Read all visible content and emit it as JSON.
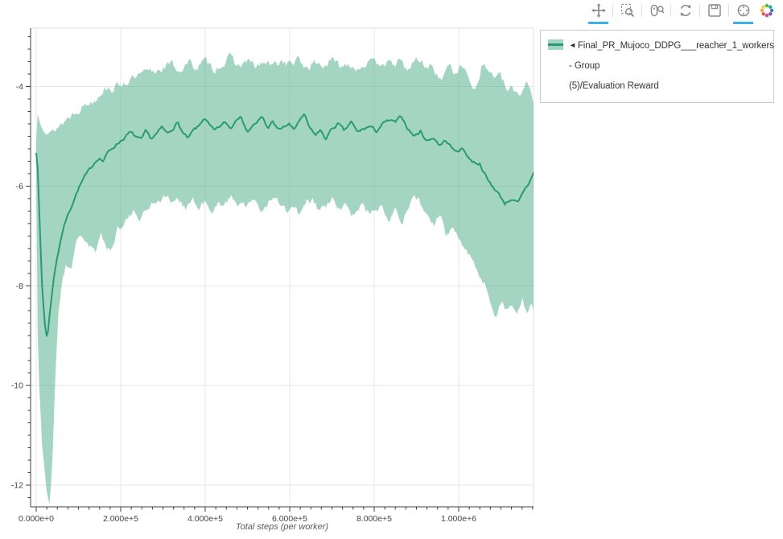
{
  "toolbar": {
    "icon_color": "#8c8c8c",
    "active_underline_color": "#3fb0e4",
    "tools": [
      {
        "id": "pan",
        "active": true
      },
      {
        "id": "box-zoom",
        "active": false
      },
      {
        "id": "wheel-zoom",
        "active": false
      },
      {
        "id": "reset",
        "active": false
      },
      {
        "id": "save",
        "active": false
      },
      {
        "id": "hover",
        "active": true
      }
    ],
    "logo": "bokeh"
  },
  "legend": {
    "marker": "◄",
    "label_lines": [
      "Final_PR_Mujoco_DDPG___reacher_1_workers - Group",
      "(5)/Evaluation Reward"
    ],
    "swatch_band_color": "#a4d5c3",
    "swatch_line_color": "#289b72"
  },
  "chart_data": {
    "type": "line",
    "title": "",
    "xlabel": "Total steps (per worker)",
    "ylabel": "",
    "xlim": [
      -13333,
      1177143
    ],
    "ylim": [
      -12.436,
      -2.829
    ],
    "grid": true,
    "legend_position": "right",
    "x_ticks": [
      {
        "value": 0,
        "label": "0.000e+0"
      },
      {
        "value": 200000,
        "label": "2.000e+5"
      },
      {
        "value": 400000,
        "label": "4.000e+5"
      },
      {
        "value": 600000,
        "label": "6.000e+5"
      },
      {
        "value": 800000,
        "label": "8.000e+5"
      },
      {
        "value": 1000000,
        "label": "1.000e+6"
      }
    ],
    "x_minor_step": 25000,
    "y_ticks": [
      {
        "value": -4,
        "label": "-4"
      },
      {
        "value": -6,
        "label": "-6"
      },
      {
        "value": -8,
        "label": "-8"
      },
      {
        "value": -10,
        "label": "-10"
      },
      {
        "value": -12,
        "label": "-12"
      }
    ],
    "y_minor_step": 0.25,
    "style": {
      "line_color": "#289b72",
      "band_fill": "#35a27a",
      "band_opacity": 0.45,
      "axis_color": "#3f3f3f",
      "grid_color": "#e7e7e7",
      "border_color": "#e2e2e2",
      "tick_label_color": "#444444"
    },
    "series": [
      {
        "name": "Final_PR_Mujoco_DDPG___reacher_1_workers - Group (5)/Evaluation Reward",
        "mean": [
          [
            0,
            -5.33
          ],
          [
            3000,
            -5.5
          ],
          [
            8000,
            -6.7
          ],
          [
            14000,
            -8.0
          ],
          [
            20000,
            -8.75
          ],
          [
            26000,
            -9.08
          ],
          [
            34000,
            -8.4
          ],
          [
            40000,
            -7.95
          ],
          [
            48000,
            -7.5
          ],
          [
            56000,
            -7.15
          ],
          [
            64000,
            -6.85
          ],
          [
            76000,
            -6.55
          ],
          [
            88000,
            -6.3
          ],
          [
            100000,
            -6.05
          ],
          [
            112000,
            -5.85
          ],
          [
            124000,
            -5.7
          ],
          [
            136000,
            -5.55
          ],
          [
            148000,
            -5.42
          ],
          [
            158000,
            -5.5
          ],
          [
            170000,
            -5.32
          ],
          [
            182000,
            -5.22
          ],
          [
            196000,
            -5.12
          ],
          [
            210000,
            -5.02
          ],
          [
            222000,
            -4.92
          ],
          [
            235000,
            -5.0
          ],
          [
            248000,
            -5.08
          ],
          [
            260000,
            -4.9
          ],
          [
            272000,
            -5.05
          ],
          [
            285000,
            -4.95
          ],
          [
            298000,
            -4.82
          ],
          [
            310000,
            -4.95
          ],
          [
            322000,
            -4.85
          ],
          [
            335000,
            -4.72
          ],
          [
            348000,
            -4.95
          ],
          [
            360000,
            -5.05
          ],
          [
            372000,
            -4.88
          ],
          [
            385000,
            -4.8
          ],
          [
            398000,
            -4.62
          ],
          [
            410000,
            -4.78
          ],
          [
            422000,
            -4.9
          ],
          [
            435000,
            -4.8
          ],
          [
            448000,
            -4.72
          ],
          [
            460000,
            -4.85
          ],
          [
            472000,
            -4.68
          ],
          [
            485000,
            -4.55
          ],
          [
            498000,
            -4.92
          ],
          [
            510000,
            -4.8
          ],
          [
            522000,
            -4.72
          ],
          [
            535000,
            -4.62
          ],
          [
            548000,
            -4.85
          ],
          [
            560000,
            -4.68
          ],
          [
            572000,
            -4.88
          ],
          [
            585000,
            -4.82
          ],
          [
            598000,
            -4.75
          ],
          [
            610000,
            -4.88
          ],
          [
            622000,
            -4.68
          ],
          [
            635000,
            -4.58
          ],
          [
            648000,
            -4.85
          ],
          [
            660000,
            -4.98
          ],
          [
            672000,
            -4.88
          ],
          [
            685000,
            -5.05
          ],
          [
            700000,
            -4.85
          ],
          [
            715000,
            -4.75
          ],
          [
            730000,
            -4.9
          ],
          [
            745000,
            -4.7
          ],
          [
            760000,
            -4.92
          ],
          [
            775000,
            -4.85
          ],
          [
            790000,
            -4.8
          ],
          [
            805000,
            -4.9
          ],
          [
            820000,
            -4.75
          ],
          [
            835000,
            -4.68
          ],
          [
            850000,
            -4.72
          ],
          [
            865000,
            -4.6
          ],
          [
            880000,
            -4.85
          ],
          [
            895000,
            -5.0
          ],
          [
            910000,
            -4.9
          ],
          [
            925000,
            -5.1
          ],
          [
            940000,
            -5.02
          ],
          [
            955000,
            -5.18
          ],
          [
            970000,
            -5.08
          ],
          [
            990000,
            -5.3
          ],
          [
            1010000,
            -5.25
          ],
          [
            1030000,
            -5.5
          ],
          [
            1050000,
            -5.55
          ],
          [
            1070000,
            -5.9
          ],
          [
            1090000,
            -6.1
          ],
          [
            1110000,
            -6.35
          ],
          [
            1125000,
            -6.25
          ],
          [
            1140000,
            -6.35
          ],
          [
            1155000,
            -6.1
          ],
          [
            1168000,
            -5.92
          ],
          [
            1177000,
            -5.72
          ]
        ],
        "band_hi": [
          [
            0,
            -5.1
          ],
          [
            1200,
            -3.05
          ],
          [
            3500,
            -4.55
          ],
          [
            10000,
            -4.75
          ],
          [
            20000,
            -4.9
          ],
          [
            30000,
            -4.95
          ],
          [
            40000,
            -4.9
          ],
          [
            52000,
            -4.8
          ],
          [
            64000,
            -4.72
          ],
          [
            76000,
            -4.62
          ],
          [
            88000,
            -4.52
          ],
          [
            104000,
            -4.42
          ],
          [
            120000,
            -4.35
          ],
          [
            136000,
            -4.28
          ],
          [
            152000,
            -4.1
          ],
          [
            168000,
            -4.0
          ],
          [
            184000,
            -4.05
          ],
          [
            200000,
            -3.95
          ],
          [
            220000,
            -3.88
          ],
          [
            240000,
            -3.82
          ],
          [
            260000,
            -3.72
          ],
          [
            280000,
            -3.7
          ],
          [
            300000,
            -3.6
          ],
          [
            320000,
            -3.55
          ],
          [
            340000,
            -3.68
          ],
          [
            360000,
            -3.52
          ],
          [
            380000,
            -3.62
          ],
          [
            400000,
            -3.5
          ],
          [
            420000,
            -3.65
          ],
          [
            440000,
            -3.55
          ],
          [
            460000,
            -3.42
          ],
          [
            480000,
            -3.6
          ],
          [
            500000,
            -3.48
          ],
          [
            520000,
            -3.62
          ],
          [
            540000,
            -3.52
          ],
          [
            560000,
            -3.6
          ],
          [
            580000,
            -3.48
          ],
          [
            600000,
            -3.55
          ],
          [
            620000,
            -3.48
          ],
          [
            640000,
            -3.62
          ],
          [
            660000,
            -3.52
          ],
          [
            680000,
            -3.58
          ],
          [
            700000,
            -3.48
          ],
          [
            720000,
            -3.6
          ],
          [
            740000,
            -3.52
          ],
          [
            760000,
            -3.64
          ],
          [
            780000,
            -3.52
          ],
          [
            800000,
            -3.56
          ],
          [
            820000,
            -3.48
          ],
          [
            840000,
            -3.58
          ],
          [
            860000,
            -3.5
          ],
          [
            880000,
            -3.68
          ],
          [
            900000,
            -3.45
          ],
          [
            920000,
            -3.58
          ],
          [
            940000,
            -3.6
          ],
          [
            958000,
            -3.92
          ],
          [
            972000,
            -3.55
          ],
          [
            988000,
            -3.72
          ],
          [
            1005000,
            -3.6
          ],
          [
            1022000,
            -3.78
          ],
          [
            1040000,
            -4.05
          ],
          [
            1055000,
            -3.55
          ],
          [
            1070000,
            -3.68
          ],
          [
            1085000,
            -3.78
          ],
          [
            1100000,
            -3.82
          ],
          [
            1115000,
            -4.1
          ],
          [
            1130000,
            -4.05
          ],
          [
            1145000,
            -4.18
          ],
          [
            1160000,
            -3.85
          ],
          [
            1170000,
            -4.05
          ],
          [
            1177000,
            -4.35
          ]
        ],
        "band_lo": [
          [
            0,
            -5.6
          ],
          [
            1200,
            -8.2
          ],
          [
            6000,
            -9.8
          ],
          [
            14000,
            -11.2
          ],
          [
            24000,
            -12.1
          ],
          [
            32000,
            -12.42
          ],
          [
            40000,
            -11.2
          ],
          [
            46000,
            -9.6
          ],
          [
            52000,
            -8.6
          ],
          [
            60000,
            -8.0
          ],
          [
            70000,
            -7.55
          ],
          [
            82000,
            -7.65
          ],
          [
            94000,
            -7.2
          ],
          [
            106000,
            -6.95
          ],
          [
            118000,
            -7.1
          ],
          [
            130000,
            -7.25
          ],
          [
            142000,
            -7.35
          ],
          [
            154000,
            -7.0
          ],
          [
            166000,
            -7.15
          ],
          [
            178000,
            -7.3
          ],
          [
            192000,
            -6.85
          ],
          [
            206000,
            -6.7
          ],
          [
            220000,
            -6.62
          ],
          [
            235000,
            -6.55
          ],
          [
            250000,
            -6.62
          ],
          [
            265000,
            -6.42
          ],
          [
            280000,
            -6.3
          ],
          [
            295000,
            -6.25
          ],
          [
            310000,
            -6.2
          ],
          [
            325000,
            -6.35
          ],
          [
            340000,
            -6.28
          ],
          [
            355000,
            -6.42
          ],
          [
            370000,
            -6.25
          ],
          [
            385000,
            -6.48
          ],
          [
            400000,
            -6.28
          ],
          [
            415000,
            -6.62
          ],
          [
            430000,
            -6.38
          ],
          [
            445000,
            -6.3
          ],
          [
            460000,
            -6.22
          ],
          [
            475000,
            -6.35
          ],
          [
            490000,
            -6.28
          ],
          [
            505000,
            -6.4
          ],
          [
            520000,
            -6.28
          ],
          [
            535000,
            -6.5
          ],
          [
            550000,
            -6.32
          ],
          [
            565000,
            -6.28
          ],
          [
            580000,
            -6.38
          ],
          [
            595000,
            -6.55
          ],
          [
            610000,
            -6.42
          ],
          [
            625000,
            -6.6
          ],
          [
            640000,
            -6.35
          ],
          [
            655000,
            -6.3
          ],
          [
            670000,
            -6.5
          ],
          [
            685000,
            -6.4
          ],
          [
            700000,
            -6.28
          ],
          [
            715000,
            -6.48
          ],
          [
            730000,
            -6.38
          ],
          [
            745000,
            -6.58
          ],
          [
            760000,
            -6.45
          ],
          [
            775000,
            -6.35
          ],
          [
            790000,
            -6.6
          ],
          [
            805000,
            -6.45
          ],
          [
            820000,
            -6.4
          ],
          [
            835000,
            -6.62
          ],
          [
            850000,
            -6.38
          ],
          [
            865000,
            -6.68
          ],
          [
            880000,
            -6.5
          ],
          [
            895000,
            -6.15
          ],
          [
            910000,
            -6.35
          ],
          [
            925000,
            -6.6
          ],
          [
            940000,
            -6.78
          ],
          [
            955000,
            -6.62
          ],
          [
            970000,
            -7.0
          ],
          [
            985000,
            -6.85
          ],
          [
            1000000,
            -7.05
          ],
          [
            1015000,
            -7.15
          ],
          [
            1030000,
            -7.45
          ],
          [
            1045000,
            -7.7
          ],
          [
            1060000,
            -7.95
          ],
          [
            1075000,
            -8.3
          ],
          [
            1090000,
            -8.6
          ],
          [
            1102000,
            -8.25
          ],
          [
            1114000,
            -8.5
          ],
          [
            1126000,
            -8.35
          ],
          [
            1138000,
            -8.62
          ],
          [
            1150000,
            -8.2
          ],
          [
            1160000,
            -8.55
          ],
          [
            1170000,
            -8.3
          ],
          [
            1177000,
            -8.5
          ]
        ]
      }
    ]
  }
}
